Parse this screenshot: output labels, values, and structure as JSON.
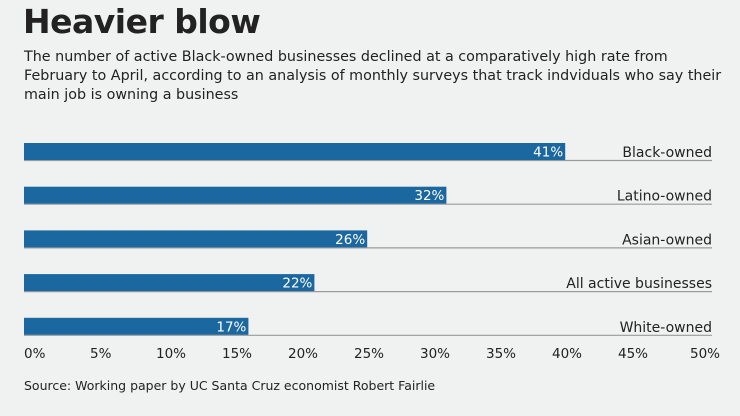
{
  "title": "Heavier blow",
  "subtitle": "The number of active Black-owned businesses declined at a comparatively high rate from February to April, according to an analysis of monthly surveys that track indviduals who say their main job is owning a business",
  "source": "Source: Working paper by UC Santa Cruz economist Robert Fairlie",
  "colors": {
    "bar": "#1b67a0",
    "background": "#f0f1f1",
    "baseline": "#9a9a9a"
  },
  "chart_data": {
    "type": "bar",
    "orientation": "horizontal",
    "categories": [
      "Black-owned",
      "Latino-owned",
      "Asian-owned",
      "All active businesses",
      "White-owned"
    ],
    "values": [
      41,
      32,
      26,
      22,
      17
    ],
    "data_labels": [
      "41%",
      "32%",
      "26%",
      "22%",
      "17%"
    ],
    "xlim": [
      0,
      50
    ],
    "xticks": [
      "0%",
      "5%",
      "10%",
      "15%",
      "20%",
      "25%",
      "30%",
      "35%",
      "40%",
      "45%",
      "50%"
    ],
    "grid": false
  }
}
